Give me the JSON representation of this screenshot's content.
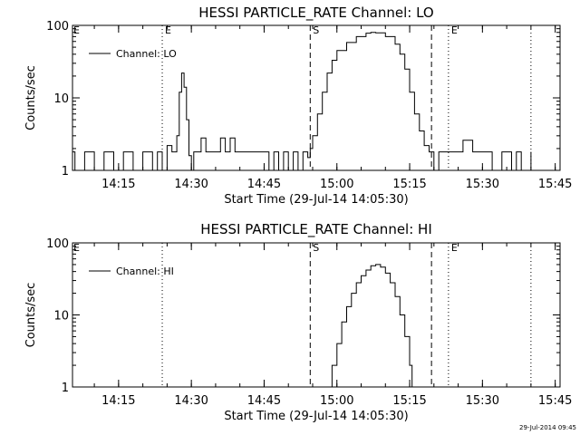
{
  "footer": {
    "timestamp": "29-Jul-2014 09:45"
  },
  "chart_data": [
    {
      "type": "line",
      "title": "HESSI PARTICLE_RATE Channel: LO",
      "xlabel": "Start Time (29-Jul-14 14:05:30)",
      "ylabel": "Counts/sec",
      "yscale": "log",
      "ylim": [
        1,
        100
      ],
      "xlim": [
        "14:05:30",
        "15:46:00"
      ],
      "xticks": [
        "14:15",
        "14:30",
        "14:45",
        "15:00",
        "15:15",
        "15:30",
        "15:45"
      ],
      "yticks": [
        "1",
        "10",
        "100"
      ],
      "legend": {
        "label": "Channel: LO",
        "placement": "top-left"
      },
      "markers": [
        {
          "time": "14:24:00",
          "style": "dotted",
          "label": "E"
        },
        {
          "time": "14:54:30",
          "style": "dashed",
          "label": "S"
        },
        {
          "time": "15:19:30",
          "style": "dashed",
          "label": ""
        },
        {
          "time": "15:23:00",
          "style": "dotted",
          "label": "E"
        },
        {
          "time": "15:40:00",
          "style": "dotted",
          "label": ""
        }
      ],
      "corner_labels": [
        "E"
      ],
      "series": [
        {
          "name": "Channel: LO",
          "x": [
            "14:05:30",
            "14:06:00",
            "14:08:00",
            "14:10:00",
            "14:12:00",
            "14:14:00",
            "14:16:00",
            "14:18:00",
            "14:20:00",
            "14:22:00",
            "14:23:00",
            "14:24:00",
            "14:25:00",
            "14:26:00",
            "14:27:00",
            "14:27:30",
            "14:28:00",
            "14:28:30",
            "14:29:00",
            "14:29:30",
            "14:30:00",
            "14:30:30",
            "14:31:00",
            "14:32:00",
            "14:33:00",
            "14:34:00",
            "14:35:00",
            "14:36:00",
            "14:37:00",
            "14:38:00",
            "14:39:00",
            "14:40:00",
            "14:42:00",
            "14:44:00",
            "14:45:00",
            "14:46:00",
            "14:47:00",
            "14:48:00",
            "14:49:00",
            "14:50:00",
            "14:51:00",
            "14:52:00",
            "14:53:00",
            "14:54:00",
            "14:54:30",
            "14:55:00",
            "14:56:00",
            "14:57:00",
            "14:58:00",
            "14:59:00",
            "15:00:00",
            "15:02:00",
            "15:04:00",
            "15:06:00",
            "15:07:00",
            "15:08:00",
            "15:10:00",
            "15:12:00",
            "15:13:00",
            "15:14:00",
            "15:15:00",
            "15:16:00",
            "15:17:00",
            "15:18:00",
            "15:19:00",
            "15:20:00",
            "15:21:00",
            "15:22:00",
            "15:24:00",
            "15:26:00",
            "15:28:00",
            "15:30:00",
            "15:32:00",
            "15:34:00",
            "15:36:00",
            "15:37:00",
            "15:38:00",
            "15:39:00",
            "15:40:00"
          ],
          "y": [
            1.8,
            1,
            1.8,
            1,
            1.8,
            1,
            1.8,
            1,
            1.8,
            1,
            1.8,
            1,
            2.2,
            1.8,
            3,
            12,
            22,
            14,
            5,
            1.6,
            1,
            1.8,
            1.8,
            2.8,
            1.8,
            1.8,
            1.8,
            2.8,
            1.8,
            2.8,
            1.8,
            1.8,
            1.8,
            1.8,
            1.8,
            1,
            1.8,
            1,
            1.8,
            1,
            1.8,
            1,
            1.8,
            1.5,
            2,
            3,
            6,
            12,
            22,
            33,
            45,
            58,
            70,
            78,
            80,
            79,
            70,
            55,
            40,
            25,
            12,
            6,
            3.5,
            2.2,
            1.8,
            1,
            1.8,
            1.8,
            1.8,
            2.6,
            1.8,
            1.8,
            1,
            1.8,
            1,
            1.8,
            1,
            1,
            1.8
          ]
        }
      ]
    },
    {
      "type": "line",
      "title": "HESSI PARTICLE_RATE Channel: HI",
      "xlabel": "Start Time (29-Jul-14 14:05:30)",
      "ylabel": "Counts/sec",
      "yscale": "log",
      "ylim": [
        1,
        100
      ],
      "xlim": [
        "14:05:30",
        "15:46:00"
      ],
      "xticks": [
        "14:15",
        "14:30",
        "14:45",
        "15:00",
        "15:15",
        "15:30",
        "15:45"
      ],
      "yticks": [
        "1",
        "10",
        "100"
      ],
      "legend": {
        "label": "Channel: HI",
        "placement": "top-left"
      },
      "markers": [
        {
          "time": "14:24:00",
          "style": "dotted",
          "label": ""
        },
        {
          "time": "14:54:30",
          "style": "dashed",
          "label": "S"
        },
        {
          "time": "15:19:30",
          "style": "dashed",
          "label": ""
        },
        {
          "time": "15:23:00",
          "style": "dotted",
          "label": "E"
        },
        {
          "time": "15:40:00",
          "style": "dotted",
          "label": ""
        }
      ],
      "corner_labels": [
        "E"
      ],
      "series": [
        {
          "name": "Channel: HI",
          "x": [
            "14:58:30",
            "14:59:00",
            "15:00:00",
            "15:01:00",
            "15:02:00",
            "15:03:00",
            "15:04:00",
            "15:05:00",
            "15:06:00",
            "15:07:00",
            "15:08:00",
            "15:09:00",
            "15:10:00",
            "15:11:00",
            "15:12:00",
            "15:13:00",
            "15:14:00",
            "15:15:00",
            "15:15:30"
          ],
          "y": [
            1,
            2,
            4,
            8,
            13,
            20,
            28,
            35,
            42,
            48,
            50,
            46,
            38,
            28,
            18,
            10,
            5,
            2,
            1
          ]
        }
      ]
    }
  ]
}
